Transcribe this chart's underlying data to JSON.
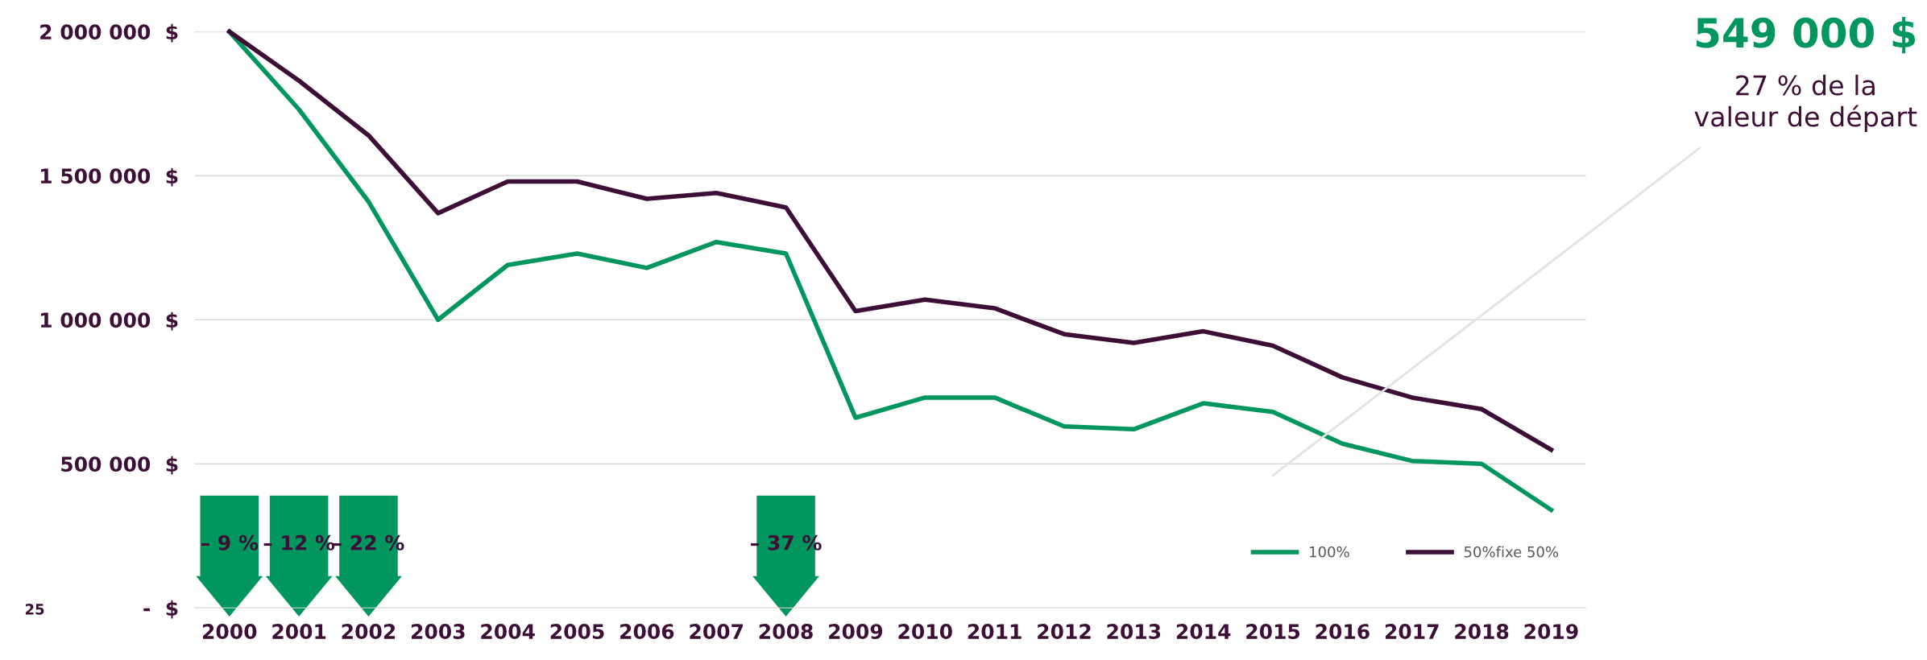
{
  "chart_data": {
    "type": "line",
    "categories": [
      "2000",
      "2001",
      "2002",
      "2003",
      "2004",
      "2005",
      "2006",
      "2007",
      "2008",
      "2009",
      "2010",
      "2011",
      "2012",
      "2013",
      "2014",
      "2015",
      "2016",
      "2017",
      "2018",
      "2019"
    ],
    "series": [
      {
        "name": "100%",
        "color": "#00965e",
        "values": [
          2000000,
          1730000,
          1410000,
          1000000,
          1190000,
          1230000,
          1180000,
          1270000,
          1230000,
          660000,
          730000,
          730000,
          630000,
          620000,
          710000,
          680000,
          570000,
          510000,
          500000,
          340000
        ]
      },
      {
        "name": "50%fixe 50%",
        "color": "#3d0f36",
        "values": [
          2000000,
          1830000,
          1640000,
          1370000,
          1480000,
          1480000,
          1420000,
          1440000,
          1390000,
          1030000,
          1070000,
          1040000,
          950000,
          920000,
          960000,
          910000,
          800000,
          730000,
          690000,
          549000
        ]
      }
    ],
    "ylim": [
      0,
      2000000
    ],
    "yticks": [
      {
        "value": 0,
        "label": "-  $"
      },
      {
        "value": 500000,
        "label": "500 000  $"
      },
      {
        "value": 1000000,
        "label": "1 000 000  $"
      },
      {
        "value": 1500000,
        "label": "1 500 000  $"
      },
      {
        "value": 2000000,
        "label": "2 000 000  $"
      }
    ],
    "grid": "y",
    "legend": "bottom right",
    "marker": "none",
    "line_style": "solid",
    "annotations": [
      "– 9 %",
      "– 12 %",
      "– 22 %",
      "– 37 %",
      "549 000 $",
      "27 % de la\nvaleur de départ",
      "25"
    ]
  }
}
